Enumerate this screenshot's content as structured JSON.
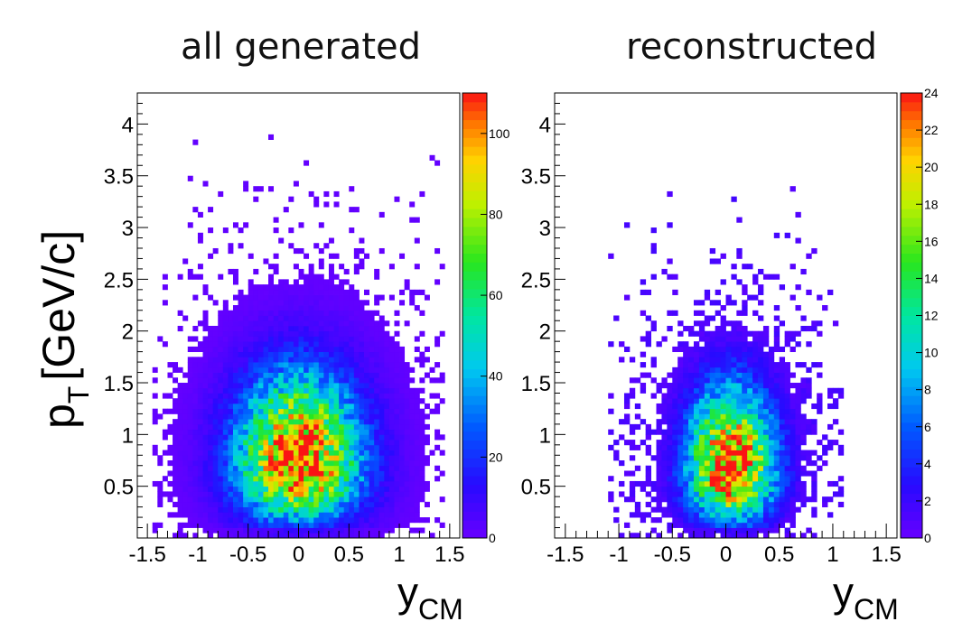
{
  "chart_data": [
    {
      "type": "heatmap",
      "title": "all generated",
      "xlabel": "y",
      "xlabel_sub": "CM",
      "ylabel": "p",
      "ylabel_sub": "T",
      "ylabel_unit": "[GeV/c]",
      "xlim": [
        -1.6,
        1.6
      ],
      "ylim": [
        0,
        4.3
      ],
      "x_ticks": [
        {
          "value": -1.5,
          "label": "-1.5"
        },
        {
          "value": -1,
          "label": "-1"
        },
        {
          "value": -0.5,
          "label": "-0.5"
        },
        {
          "value": 0,
          "label": "0"
        },
        {
          "value": 0.5,
          "label": "0.5"
        },
        {
          "value": 1,
          "label": "1"
        },
        {
          "value": 1.5,
          "label": "1.5"
        }
      ],
      "y_ticks": [
        {
          "value": 0.5,
          "label": "0.5"
        },
        {
          "value": 1,
          "label": "1"
        },
        {
          "value": 1.5,
          "label": "1.5"
        },
        {
          "value": 2,
          "label": "2"
        },
        {
          "value": 2.5,
          "label": "2.5"
        },
        {
          "value": 3,
          "label": "3"
        },
        {
          "value": 3.5,
          "label": "3.5"
        },
        {
          "value": 4,
          "label": "4"
        }
      ],
      "colorbar": {
        "zmin": 0,
        "zmax": 110,
        "ticks": [
          {
            "value": 0,
            "label": "0"
          },
          {
            "value": 20,
            "label": "20"
          },
          {
            "value": 40,
            "label": "40"
          },
          {
            "value": 60,
            "label": "60"
          },
          {
            "value": 80,
            "label": "80"
          },
          {
            "value": 100,
            "label": "100"
          }
        ]
      },
      "distribution": {
        "peak_count": 110,
        "peak_x": 0.0,
        "peak_y": 0.7,
        "sigma_x": 0.42,
        "sigma_y_low": 0.35,
        "sigma_y_high": 0.6,
        "x_extent": 1.45,
        "y_max": 3.9,
        "bins_x": 64,
        "bins_y": 86,
        "seed": 11
      }
    },
    {
      "type": "heatmap",
      "title": "reconstructed",
      "xlabel": "y",
      "xlabel_sub": "CM",
      "xlim": [
        -1.6,
        1.6
      ],
      "ylim": [
        0,
        4.3
      ],
      "x_ticks": [
        {
          "value": -1.5,
          "label": "-1.5"
        },
        {
          "value": -1,
          "label": "-1"
        },
        {
          "value": -0.5,
          "label": "-0.5"
        },
        {
          "value": 0,
          "label": "0"
        },
        {
          "value": 0.5,
          "label": "0.5"
        },
        {
          "value": 1,
          "label": "1"
        },
        {
          "value": 1.5,
          "label": "1.5"
        }
      ],
      "y_ticks": [
        {
          "value": 0.5,
          "label": "0.5"
        },
        {
          "value": 1,
          "label": "1"
        },
        {
          "value": 1.5,
          "label": "1.5"
        },
        {
          "value": 2,
          "label": "2"
        },
        {
          "value": 2.5,
          "label": "2.5"
        },
        {
          "value": 3,
          "label": "3"
        },
        {
          "value": 3.5,
          "label": "3.5"
        },
        {
          "value": 4,
          "label": "4"
        }
      ],
      "colorbar": {
        "zmin": 0,
        "zmax": 24,
        "ticks": [
          {
            "value": 0,
            "label": "0"
          },
          {
            "value": 2,
            "label": "2"
          },
          {
            "value": 4,
            "label": "4"
          },
          {
            "value": 6,
            "label": "6"
          },
          {
            "value": 8,
            "label": "8"
          },
          {
            "value": 10,
            "label": "10"
          },
          {
            "value": 12,
            "label": "12"
          },
          {
            "value": 14,
            "label": "14"
          },
          {
            "value": 16,
            "label": "16"
          },
          {
            "value": 18,
            "label": "18"
          },
          {
            "value": 20,
            "label": "20"
          },
          {
            "value": 22,
            "label": "22"
          },
          {
            "value": 24,
            "label": "24"
          }
        ]
      },
      "distribution": {
        "peak_count": 24,
        "peak_x": 0.05,
        "peak_y": 0.65,
        "sigma_x": 0.28,
        "sigma_y_low": 0.32,
        "sigma_y_high": 0.55,
        "x_extent": 1.1,
        "y_max": 3.45,
        "bins_x": 64,
        "bins_y": 86,
        "seed": 29
      }
    }
  ]
}
